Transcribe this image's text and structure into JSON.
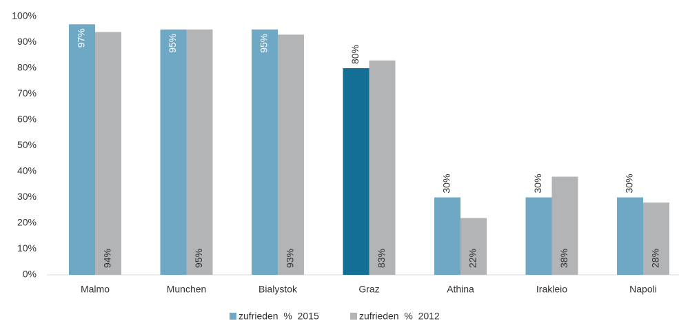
{
  "chart_data": {
    "type": "bar",
    "categories": [
      "Malmo",
      "Munchen",
      "Bialystok",
      "Graz",
      "Athina",
      "Irakleio",
      "Napoli"
    ],
    "series": [
      {
        "name": "zufrieden  %  2015",
        "color": "#6fa8c5",
        "colors": [
          "#6fa8c5",
          "#6fa8c5",
          "#6fa8c5",
          "#136f96",
          "#6fa8c5",
          "#6fa8c5",
          "#6fa8c5"
        ],
        "values": [
          97,
          95,
          95,
          80,
          30,
          30,
          30
        ],
        "value_labels": [
          "97%",
          "95%",
          "95%",
          "80%",
          "30%",
          "30%",
          "30%"
        ]
      },
      {
        "name": "zufrieden  %  2012",
        "color": "#b2b4b5",
        "values": [
          94,
          95,
          93,
          83,
          22,
          38,
          28
        ],
        "value_labels": [
          "94%",
          "95%",
          "93%",
          "83%",
          "22%",
          "38%",
          "28%"
        ]
      }
    ],
    "ylim": [
      0,
      100
    ],
    "yticks": [
      {
        "value": 0,
        "label": "0%"
      },
      {
        "value": 10,
        "label": "10%"
      },
      {
        "value": 20,
        "label": "20%"
      },
      {
        "value": 30,
        "label": "30%"
      },
      {
        "value": 40,
        "label": "40%"
      },
      {
        "value": 50,
        "label": "50%"
      },
      {
        "value": 60,
        "label": "60%"
      },
      {
        "value": 70,
        "label": "70%"
      },
      {
        "value": 80,
        "label": "80%"
      },
      {
        "value": 90,
        "label": "90%"
      },
      {
        "value": 100,
        "label": "100%"
      }
    ],
    "legend": "bottom"
  }
}
